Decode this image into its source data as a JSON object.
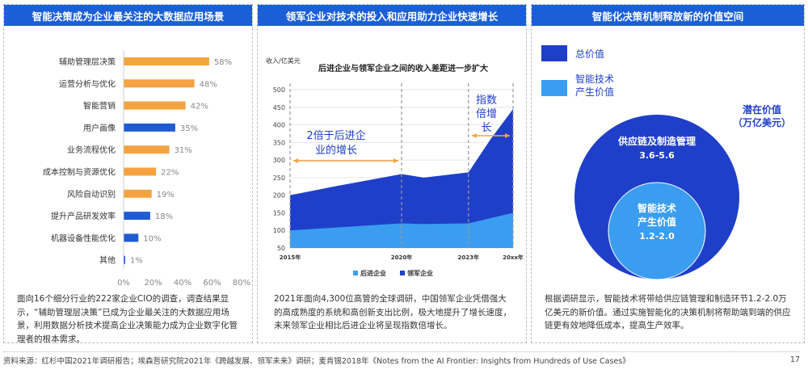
{
  "colors": {
    "header_bg": "#1b5fd6",
    "orange": "#f5a341",
    "blue_bar": "#1f5bd1",
    "dark_blue": "#1f3fc9",
    "light_blue": "#3a9df0",
    "grey_text": "#888888"
  },
  "panel1": {
    "title": "智能决策成为企业最关注的大数据应用场景",
    "description": "面向16个细分行业的222家企业CIO的调查，调查结果显示，“辅助管理层决策”已成为企业最关注的大数据应用场景，利用数据分析技术提高企业决策能力成为企业数字化管理者的根本需求。"
  },
  "panel2": {
    "title": "领军企业对技术的投入和应用助力企业快速增长",
    "description": "2021年面向4,300位高管的全球调研，中国领军企业凭借强大的高成熟度的系统和高创新支出比例，极大地提升了增长速度，未来领军企业相比后进企业将呈现指数倍增长。"
  },
  "panel3": {
    "title": "智能化决策机制释放新的价值空间",
    "legend_total": "总价值",
    "legend_ai_line1": "智能技术",
    "legend_ai_line2": "产生价值",
    "potential_line1": "潜在价值",
    "potential_line2": "（万亿美元）",
    "outer_label": "供应链及制造管理",
    "outer_value": "3.6-5.6",
    "inner_label_line1": "智能技术",
    "inner_label_line2": "产生价值",
    "inner_value": "1.2-2.0",
    "description": "根据调研显示，智能技术将带给供应链管理和制造环节1.2-2.0万亿美元的新价值。通过实施智能化的决策机制将帮助端到端的供应链更有效地降低成本，提高生产效率。"
  },
  "footer": {
    "source": "资料来源：红杉中国2021年调研报告；埃森哲研究院2021年《跨越发展、领军未来》调研；麦肯锡2018年《Notes from the AI Frontier: Insights from Hundreds of Use Cases》",
    "page_number": "17"
  },
  "chart_data": [
    {
      "type": "bar",
      "orientation": "horizontal",
      "categories": [
        "辅助管理层决策",
        "运营分析与优化",
        "智能营销",
        "用户画像",
        "业务流程优化",
        "成本控制与资源优化",
        "风险自动识别",
        "提升产品研发效率",
        "机器设备性能优化",
        "其他"
      ],
      "values": [
        58,
        48,
        42,
        35,
        31,
        22,
        19,
        18,
        10,
        1
      ],
      "value_labels": [
        "58%",
        "48%",
        "42%",
        "35%",
        "31%",
        "22%",
        "19%",
        "18%",
        "10%",
        "1%"
      ],
      "bar_colors": [
        "#f5a341",
        "#f5a341",
        "#f5a341",
        "#1f5bd1",
        "#f5a341",
        "#f5a341",
        "#f5a341",
        "#1f5bd1",
        "#1f5bd1",
        "#1f5bd1"
      ],
      "xlim": [
        0,
        80
      ],
      "xticks": [
        "0%",
        "20%",
        "40%",
        "60%",
        "80%"
      ]
    },
    {
      "type": "area",
      "title": "后进企业与领军企业之间的收入差距进一步扩大",
      "ylabel": "收入/亿美元",
      "ylim": [
        50,
        500
      ],
      "yticks": [
        50,
        100,
        150,
        200,
        250,
        300,
        350,
        400,
        450,
        500
      ],
      "x_tick_labels": [
        "2015年",
        "2020年",
        "2023年",
        "20xx年"
      ],
      "x": [
        2015,
        2017,
        2020,
        2021,
        2023,
        2024,
        2025
      ],
      "series": [
        {
          "name": "后进企业",
          "color": "#3a9df0",
          "values": [
            100,
            108,
            120,
            118,
            120,
            135,
            150
          ]
        },
        {
          "name": "领军企业",
          "color": "#1f3fc9",
          "values": [
            200,
            225,
            260,
            250,
            265,
            360,
            445
          ]
        }
      ],
      "annotations": [
        {
          "text_line1": "2倍于后进企",
          "text_line2": "业的增长"
        },
        {
          "text_line1": "指数",
          "text_line2": "倍增",
          "text_line3": "长"
        }
      ]
    }
  ]
}
